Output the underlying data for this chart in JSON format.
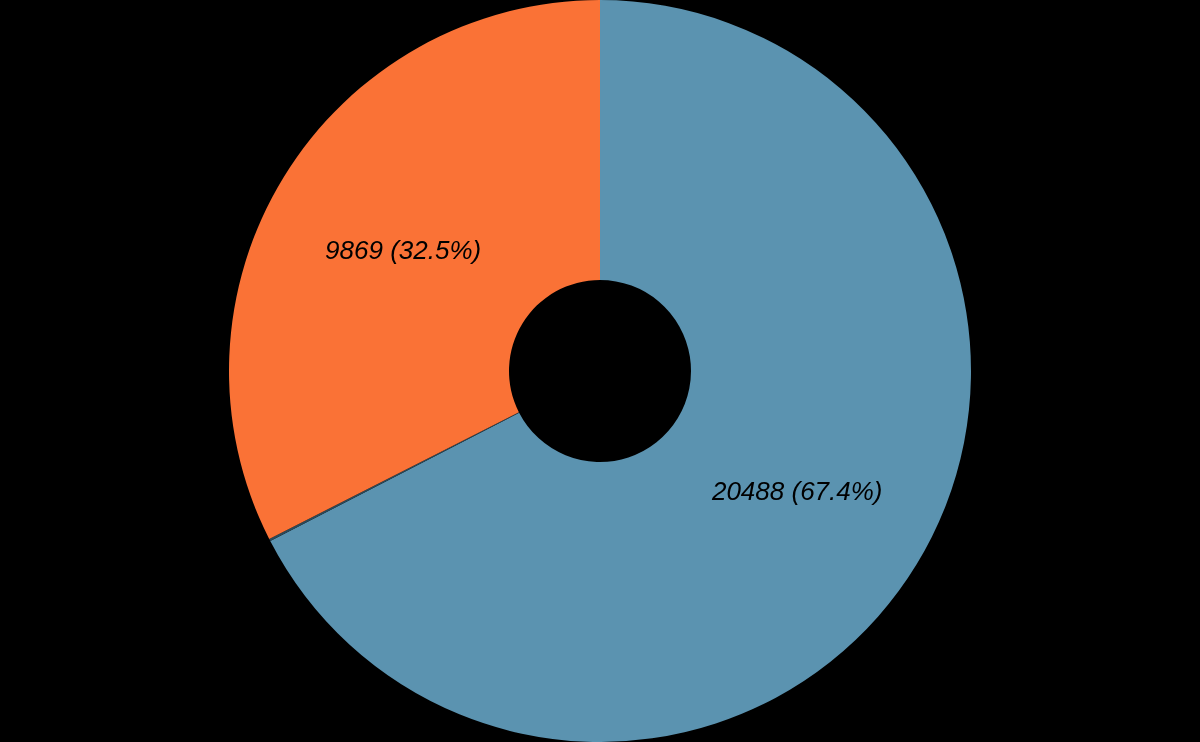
{
  "chart_data": {
    "type": "donut",
    "categories": [
      null,
      null,
      null
    ],
    "values": [
      20488,
      30,
      9869
    ],
    "colors": [
      "#5b93b0",
      "#2b4a5a",
      "#fa7236"
    ],
    "value_labels": [
      "20488 (67.4%)",
      null,
      "9869 (32.5%)"
    ]
  }
}
